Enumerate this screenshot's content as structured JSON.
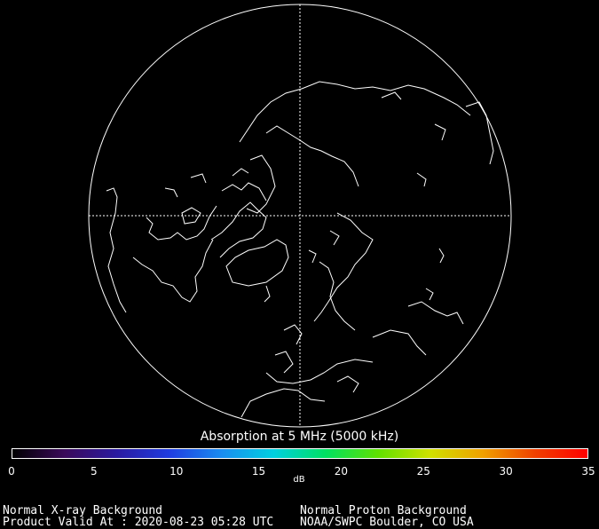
{
  "map": {
    "projection": "north-polar orthographic",
    "background_color": "#000000",
    "line_color": "#ffffff"
  },
  "scale": {
    "title": "Absorption at 5 MHz (5000 kHz)",
    "unit": "dB",
    "min": 0,
    "max": 35,
    "ticks": [
      "0",
      "5",
      "10",
      "15",
      "20",
      "25",
      "30",
      "35"
    ],
    "gradient": [
      "#000000",
      "#3a0a5a",
      "#2a1aa0",
      "#1f3ce0",
      "#1a8cf0",
      "#00d0e0",
      "#00e060",
      "#60e000",
      "#d0e000",
      "#f0a000",
      "#f04000",
      "#ff0000"
    ]
  },
  "footer": {
    "xray_status": "Normal X-ray Background",
    "valid_at": "Product Valid At : 2020-08-23 05:28 UTC",
    "proton_status": "Normal Proton Background",
    "source": "NOAA/SWPC Boulder, CO USA"
  }
}
